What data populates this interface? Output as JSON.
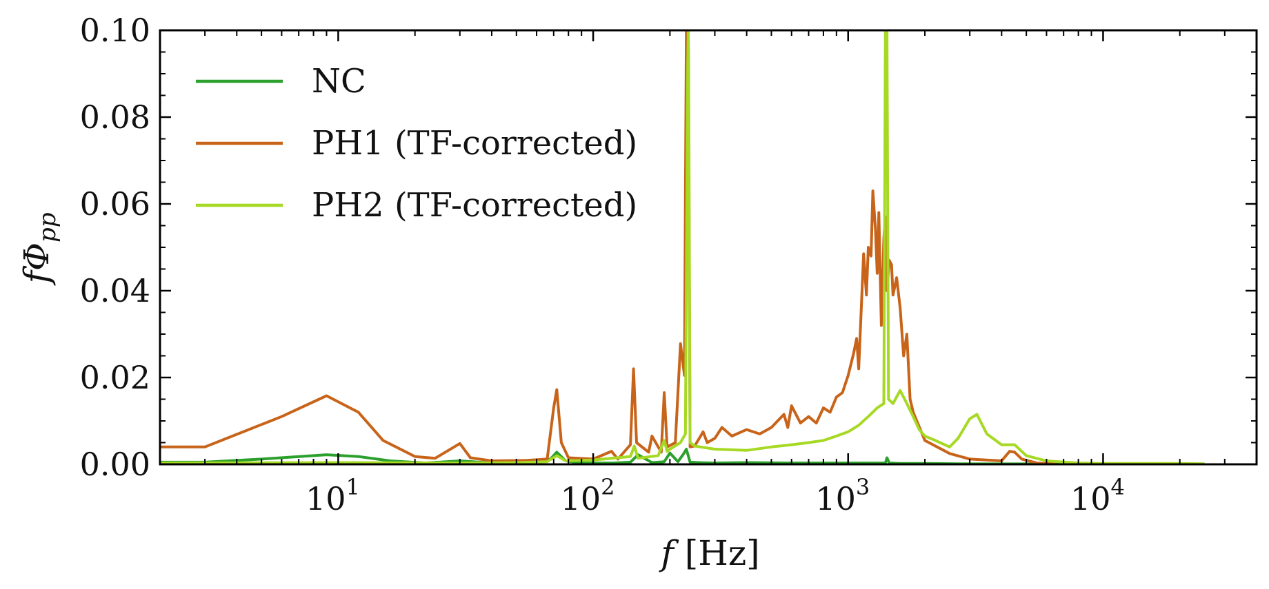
{
  "chart_data": {
    "type": "line",
    "title": "",
    "xlabel": "f [Hz]",
    "ylabel": "fΦpp",
    "xscale": "log",
    "xlim": [
      2,
      40000
    ],
    "ylim": [
      0,
      0.1
    ],
    "grid": false,
    "legend_position": "top-left",
    "x_ticks": [
      {
        "value": 10,
        "base": "10",
        "exp": "1"
      },
      {
        "value": 100,
        "base": "10",
        "exp": "2"
      },
      {
        "value": 1000,
        "base": "10",
        "exp": "3"
      },
      {
        "value": 10000,
        "base": "10",
        "exp": "4"
      }
    ],
    "y_ticks": [
      {
        "value": 0.0,
        "label": "0.00"
      },
      {
        "value": 0.02,
        "label": "0.02"
      },
      {
        "value": 0.04,
        "label": "0.04"
      },
      {
        "value": 0.06,
        "label": "0.06"
      },
      {
        "value": 0.08,
        "label": "0.08"
      },
      {
        "value": 0.1,
        "label": "0.10"
      }
    ],
    "series": [
      {
        "name": "NC",
        "color": "#2ca02c",
        "x": [
          2,
          3,
          5,
          9,
          12,
          16,
          22,
          30,
          40,
          55,
          68,
          72,
          78,
          90,
          120,
          140,
          150,
          170,
          190,
          200,
          215,
          225,
          232,
          240,
          260,
          300,
          400,
          600,
          800,
          1000,
          1200,
          1400,
          1420,
          1450,
          1600,
          2000,
          3000,
          5000,
          10000,
          25000
        ],
        "y": [
          0.0005,
          0.0005,
          0.0012,
          0.0022,
          0.0018,
          0.0008,
          0.0003,
          0.0008,
          0.0003,
          0.0004,
          0.0012,
          0.0028,
          0.0008,
          0.0003,
          0.0003,
          0.0005,
          0.0022,
          0.0004,
          0.0006,
          0.0026,
          0.0006,
          0.0022,
          0.0035,
          0.0005,
          0.0004,
          0.0003,
          0.0004,
          0.0003,
          0.0003,
          0.0003,
          0.0003,
          0.0003,
          0.0015,
          0.0003,
          0.0002,
          0.0002,
          0.0001,
          0.0001,
          0.0001,
          0.0001
        ]
      },
      {
        "name": "PH1 (TF-corrected)",
        "color": "#c8641a",
        "x": [
          2,
          3,
          6,
          9,
          12,
          15,
          20,
          24,
          30,
          33,
          40,
          55,
          66,
          70,
          72,
          75,
          80,
          100,
          118,
          125,
          140,
          144,
          148,
          165,
          170,
          185,
          190,
          195,
          210,
          220,
          228,
          232,
          234,
          236,
          240,
          250,
          270,
          280,
          300,
          320,
          350,
          400,
          450,
          500,
          560,
          580,
          600,
          650,
          700,
          750,
          800,
          850,
          900,
          950,
          1000,
          1050,
          1080,
          1100,
          1150,
          1180,
          1200,
          1230,
          1250,
          1280,
          1300,
          1320,
          1350,
          1380,
          1400,
          1420,
          1450,
          1480,
          1500,
          1550,
          1600,
          1650,
          1700,
          1750,
          1800,
          2000,
          2500,
          3000,
          4000,
          4300,
          4500,
          4800,
          5500,
          6500
        ],
        "y": [
          0.004,
          0.004,
          0.011,
          0.0158,
          0.012,
          0.0055,
          0.0018,
          0.0014,
          0.0048,
          0.0015,
          0.0008,
          0.0009,
          0.0012,
          0.013,
          0.0172,
          0.005,
          0.0015,
          0.0012,
          0.003,
          0.0012,
          0.0045,
          0.022,
          0.005,
          0.0028,
          0.0065,
          0.0028,
          0.0165,
          0.004,
          0.005,
          0.0278,
          0.0205,
          0.1,
          0.1,
          0.1,
          0.004,
          0.0042,
          0.0075,
          0.005,
          0.006,
          0.0085,
          0.0065,
          0.008,
          0.007,
          0.0085,
          0.0115,
          0.0085,
          0.0135,
          0.0095,
          0.011,
          0.0095,
          0.013,
          0.012,
          0.0155,
          0.0165,
          0.0205,
          0.0255,
          0.029,
          0.022,
          0.0485,
          0.039,
          0.05,
          0.048,
          0.063,
          0.054,
          0.044,
          0.058,
          0.032,
          0.052,
          0.057,
          0.04,
          0.047,
          0.046,
          0.039,
          0.043,
          0.036,
          0.025,
          0.03,
          0.015,
          0.012,
          0.0055,
          0.0025,
          0.0012,
          0.0008,
          0.003,
          0.0028,
          0.0012,
          0.0003,
          0.0001
        ]
      },
      {
        "name": "PH2 (TF-corrected)",
        "color": "#a6d923",
        "x": [
          2,
          10,
          30,
          50,
          66,
          72,
          78,
          100,
          140,
          145,
          150,
          180,
          190,
          195,
          200,
          220,
          230,
          235,
          236,
          237,
          240,
          250,
          300,
          400,
          500,
          600,
          700,
          800,
          900,
          1000,
          1100,
          1200,
          1300,
          1380,
          1400,
          1410,
          1420,
          1440,
          1500,
          1600,
          1700,
          1800,
          1900,
          2000,
          2200,
          2500,
          2700,
          3000,
          3200,
          3500,
          4000,
          4500,
          5000,
          6000,
          8000,
          10000,
          15000,
          20000,
          25000
        ],
        "y": [
          0.0003,
          0.0004,
          0.0003,
          0.0004,
          0.0006,
          0.002,
          0.0008,
          0.001,
          0.0018,
          0.0042,
          0.0014,
          0.002,
          0.0055,
          0.003,
          0.0035,
          0.005,
          0.007,
          0.092,
          0.1,
          0.092,
          0.005,
          0.0042,
          0.0035,
          0.0032,
          0.004,
          0.0045,
          0.005,
          0.0055,
          0.0065,
          0.0075,
          0.009,
          0.011,
          0.013,
          0.014,
          0.1,
          0.1,
          0.1,
          0.015,
          0.014,
          0.017,
          0.014,
          0.011,
          0.008,
          0.0065,
          0.0055,
          0.004,
          0.006,
          0.0105,
          0.0115,
          0.007,
          0.0045,
          0.0045,
          0.002,
          0.0008,
          0.0003,
          0.0002,
          0.0002,
          0.0002,
          0.0001
        ]
      }
    ]
  }
}
